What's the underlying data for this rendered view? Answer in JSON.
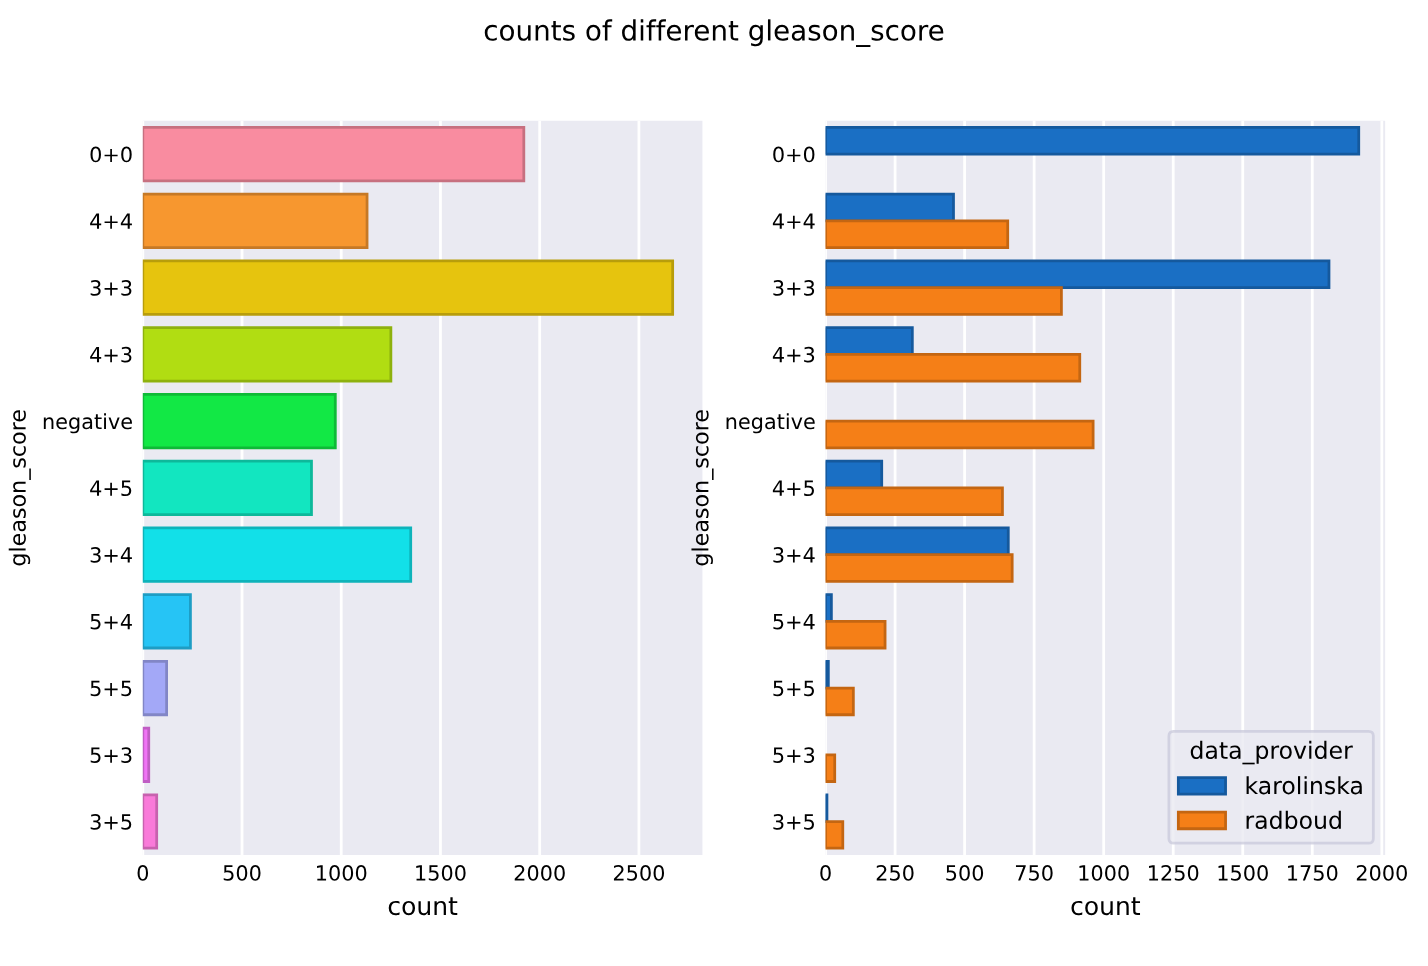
{
  "chart_data": [
    {
      "type": "bar",
      "orientation": "horizontal",
      "title": "counts of different gleason_score",
      "xlabel": "count",
      "ylabel": "gleason_score",
      "categories": [
        "0+0",
        "4+4",
        "3+3",
        "4+3",
        "negative",
        "4+5",
        "3+4",
        "5+4",
        "5+5",
        "5+3",
        "3+5"
      ],
      "values": [
        1920,
        1130,
        2670,
        1250,
        970,
        850,
        1350,
        240,
        120,
        30,
        70
      ],
      "colors": [
        "#f98ca0",
        "#f7972f",
        "#e6c40e",
        "#b1dd12",
        "#12e845",
        "#12e6c0",
        "#12e0e8",
        "#26c4f5",
        "#a3a8f7",
        "#f074f5",
        "#f97ad9"
      ],
      "xlim": [
        0,
        2820
      ],
      "xticks": [
        0,
        500,
        1000,
        1500,
        2000,
        2500
      ],
      "grid": "x",
      "legend": false
    },
    {
      "type": "bar",
      "orientation": "horizontal",
      "xlabel": "count",
      "ylabel": "gleason_score",
      "legend_title": "data_provider",
      "categories": [
        "0+0",
        "4+4",
        "3+3",
        "4+3",
        "negative",
        "4+5",
        "3+4",
        "5+4",
        "5+5",
        "5+3",
        "3+5"
      ],
      "series": [
        {
          "name": "karolinska",
          "color": "#1a6fc4",
          "values": [
            1917,
            460,
            1810,
            312,
            null,
            202,
            657,
            21,
            10,
            null,
            5
          ]
        },
        {
          "name": "radboud",
          "color": "#f57f17",
          "values": [
            null,
            655,
            848,
            914,
            962,
            636,
            671,
            214,
            100,
            33,
            62
          ]
        }
      ],
      "xlim": [
        0,
        2012
      ],
      "xticks": [
        0,
        250,
        500,
        750,
        1000,
        1250,
        1500,
        1750,
        2000
      ],
      "grid": "x",
      "legend": "bottom right"
    }
  ]
}
